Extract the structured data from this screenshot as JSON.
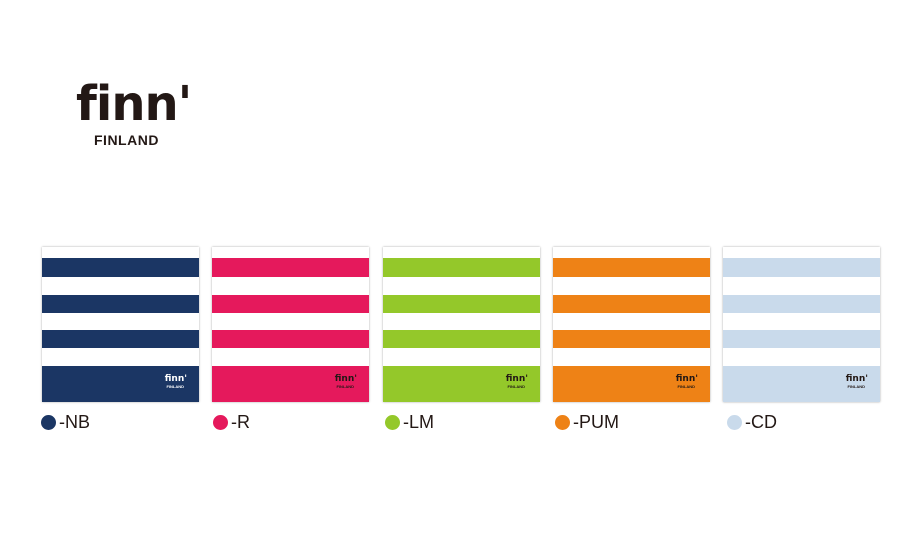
{
  "brand": {
    "wordmark": "finn'",
    "country": "FINLAND"
  },
  "colors": {
    "text": "#231815",
    "background": "#ffffff"
  },
  "variants": [
    {
      "code": "-NB",
      "color": "#1b3664",
      "logo_color": "#ffffff"
    },
    {
      "code": "-R",
      "color": "#e5195c",
      "logo_color": "#231815"
    },
    {
      "code": "-LM",
      "color": "#94c82a",
      "logo_color": "#231815"
    },
    {
      "code": "-PUM",
      "color": "#ee8216",
      "logo_color": "#231815"
    },
    {
      "code": "-CD",
      "color": "#c9daeb",
      "logo_color": "#231815"
    }
  ]
}
